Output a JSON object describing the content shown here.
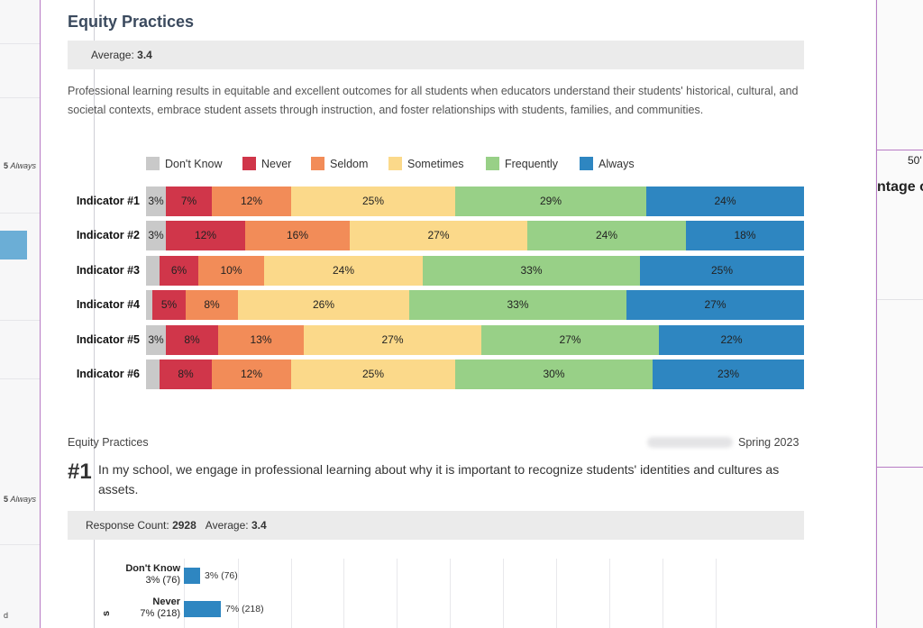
{
  "left_page": {
    "label_1": "5",
    "label_1b": "Always",
    "label_2": "5",
    "label_2b": "Always",
    "label_3": "d"
  },
  "right_page": {
    "tick": "50'",
    "heading": "ntage o"
  },
  "section": {
    "title": "Equity Practices",
    "average_label": "Average:",
    "average_value": "3.4",
    "description": "Professional learning results in equitable and excellent outcomes for all students when educators understand their students' historical, cultural, and societal contexts, embrace student assets through instruction, and foster relationships with students, families, and communities."
  },
  "colors": {
    "dont_know": "#c9c9c9",
    "never": "#d0364a",
    "seldom": "#f28c58",
    "sometimes": "#fbd98a",
    "frequently": "#98d087",
    "always": "#2e86c1"
  },
  "chart_data": [
    {
      "type": "bar",
      "stacked": true,
      "orientation": "horizontal",
      "categories": [
        "Indicator #1",
        "Indicator #2",
        "Indicator #3",
        "Indicator #4",
        "Indicator #5",
        "Indicator #6"
      ],
      "series": [
        {
          "name": "Don't Know",
          "key": "dont_know",
          "values": [
            3,
            3,
            2,
            1,
            3,
            2
          ],
          "labels": [
            "3%",
            "3%",
            "",
            "",
            "3%",
            ""
          ]
        },
        {
          "name": "Never",
          "key": "never",
          "values": [
            7,
            12,
            6,
            5,
            8,
            8
          ],
          "labels": [
            "7%",
            "12%",
            "6%",
            "5%",
            "8%",
            "8%"
          ]
        },
        {
          "name": "Seldom",
          "key": "seldom",
          "values": [
            12,
            16,
            10,
            8,
            13,
            12
          ],
          "labels": [
            "12%",
            "16%",
            "10%",
            "8%",
            "13%",
            "12%"
          ]
        },
        {
          "name": "Sometimes",
          "key": "sometimes",
          "values": [
            25,
            27,
            24,
            26,
            27,
            25
          ],
          "labels": [
            "25%",
            "27%",
            "24%",
            "26%",
            "27%",
            "25%"
          ]
        },
        {
          "name": "Frequently",
          "key": "frequently",
          "values": [
            29,
            24,
            33,
            33,
            27,
            30
          ],
          "labels": [
            "29%",
            "24%",
            "33%",
            "33%",
            "27%",
            "30%"
          ]
        },
        {
          "name": "Always",
          "key": "always",
          "values": [
            24,
            18,
            25,
            27,
            22,
            23
          ],
          "labels": [
            "24%",
            "18%",
            "25%",
            "27%",
            "22%",
            "23%"
          ]
        }
      ],
      "legend": "top"
    },
    {
      "type": "bar",
      "orientation": "horizontal",
      "categories": [
        "Don't Know",
        "Never"
      ],
      "values": [
        3,
        7
      ],
      "category_sublabels": [
        "3% (76)",
        "7% (218)"
      ],
      "value_labels": [
        "3% (76)",
        "7% (218)"
      ]
    }
  ],
  "question": {
    "section_label": "Equity Practices",
    "term": "Spring 2023",
    "number": "#1",
    "text": "In my school, we engage in professional learning about why it is important to recognize students' identities and cultures as assets.",
    "response_count_label": "Response Count:",
    "response_count_value": "2928",
    "average_label": "Average:",
    "average_value": "3.4",
    "axis_fragment": "s"
  }
}
